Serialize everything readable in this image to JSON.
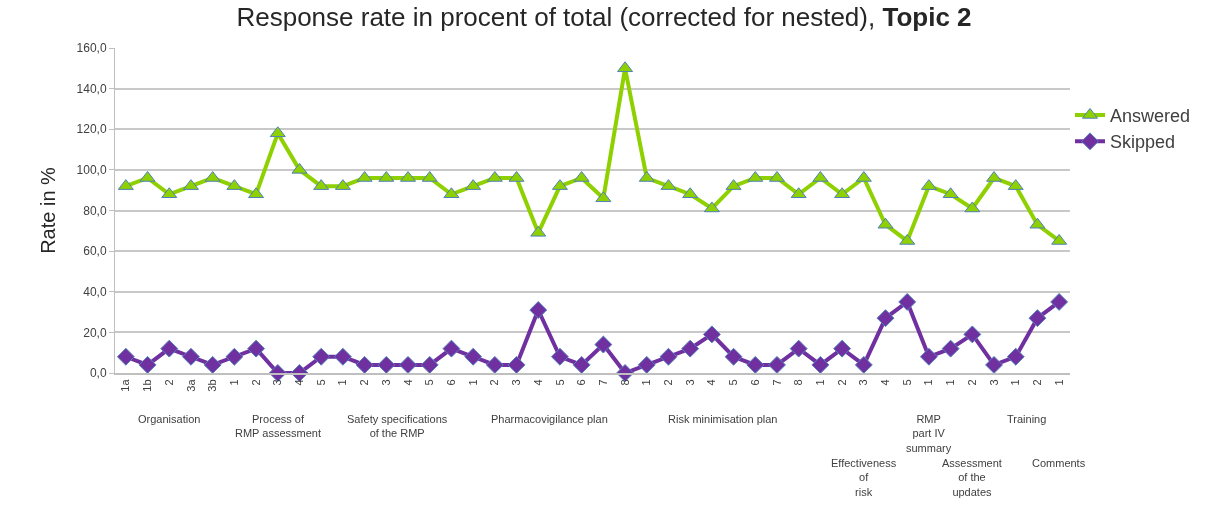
{
  "chart_data": {
    "type": "line",
    "title": "Response rate in procent of total (corrected for nested), Topic 2",
    "ylabel": "Rate in %",
    "categories": [
      "1a",
      "1b",
      "2",
      "3a",
      "3b",
      "1",
      "2",
      "3",
      "4",
      "5",
      "1",
      "2",
      "3",
      "4",
      "5",
      "6",
      "1",
      "2",
      "3",
      "4",
      "5",
      "6",
      "7",
      "8",
      "1",
      "2",
      "3",
      "4",
      "5",
      "6",
      "7",
      "8",
      "1",
      "2",
      "3",
      "4",
      "5",
      "1",
      "1",
      "2",
      "3",
      "1",
      "2",
      "1"
    ],
    "series": [
      {
        "name": "Answered",
        "color": "#8fd000",
        "marker": "triangle",
        "values": [
          92,
          96,
          88,
          92,
          96,
          92,
          88,
          118,
          100,
          92,
          92,
          96,
          96,
          96,
          96,
          88,
          92,
          96,
          96,
          69,
          92,
          96,
          86,
          150,
          96,
          92,
          88,
          81,
          92,
          96,
          96,
          88,
          96,
          88,
          96,
          73,
          65,
          92,
          88,
          81,
          96,
          92,
          73,
          65
        ]
      },
      {
        "name": "Skipped",
        "color": "#7030a0",
        "marker": "diamond",
        "values": [
          8,
          4,
          12,
          8,
          4,
          8,
          12,
          0,
          0,
          8,
          8,
          4,
          4,
          4,
          4,
          12,
          8,
          4,
          4,
          31,
          8,
          4,
          14,
          0,
          4,
          8,
          12,
          19,
          8,
          4,
          4,
          12,
          4,
          12,
          4,
          27,
          35,
          8,
          12,
          19,
          4,
          8,
          27,
          35
        ]
      }
    ],
    "ylim": [
      0,
      160
    ],
    "yticks": [
      {
        "value": 0,
        "label": "0,0"
      },
      {
        "value": 20,
        "label": "20,0"
      },
      {
        "value": 40,
        "label": "40,0"
      },
      {
        "value": 60,
        "label": "60,0"
      },
      {
        "value": 80,
        "label": "80,0"
      },
      {
        "value": 100,
        "label": "100,0"
      },
      {
        "value": 120,
        "label": "120,0"
      },
      {
        "value": 140,
        "label": "140,0"
      },
      {
        "value": 160,
        "label": "160,0"
      }
    ],
    "grid": "y",
    "legend": "top right",
    "annotations": [
      "Organisation",
      "Process of\nRMP assessment",
      "Safety specifications\nof the RMP",
      "Pharmacovigilance plan",
      "Risk minimisation plan",
      "Effectiveness\nof\nrisk",
      "RMP\npart IV\nsummary",
      "Assessment\nof the\nupdates",
      "Training",
      "Comments"
    ]
  }
}
